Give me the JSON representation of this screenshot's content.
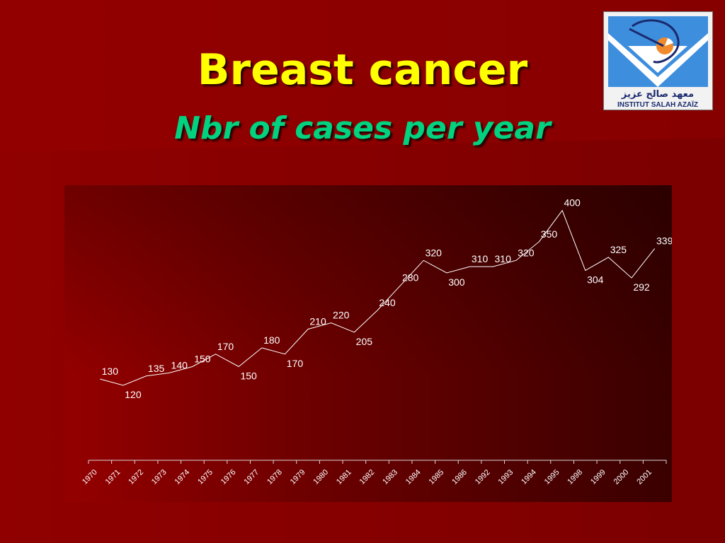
{
  "slide": {
    "title": "Breast cancer",
    "subtitle": "Nbr of cases per year",
    "colors": {
      "background": "#8a0000",
      "title": "#ffff00",
      "subtitle": "#00d27f",
      "line": "#ffffff"
    }
  },
  "logo": {
    "arabic_name": "معهد صالح عزيز",
    "latin_name": "INSTITUT SALAH AZAÏZ",
    "icon": "institute-logo"
  },
  "chart_data": {
    "type": "line",
    "categories": [
      "1970",
      "1971",
      "1972",
      "1973",
      "1974",
      "1975",
      "1976",
      "1977",
      "1978",
      "1979",
      "1980",
      "1981",
      "1982",
      "1983",
      "1984",
      "1985",
      "1986",
      "1992",
      "1993",
      "1994",
      "1995",
      "1998",
      "1999",
      "2000",
      "2001"
    ],
    "values": [
      130,
      120,
      135,
      140,
      150,
      170,
      150,
      180,
      170,
      210,
      220,
      205,
      240,
      280,
      320,
      300,
      310,
      310,
      320,
      350,
      400,
      304,
      325,
      292,
      339
    ],
    "ylim": [
      0,
      420
    ],
    "grid": false,
    "legend": "none"
  }
}
